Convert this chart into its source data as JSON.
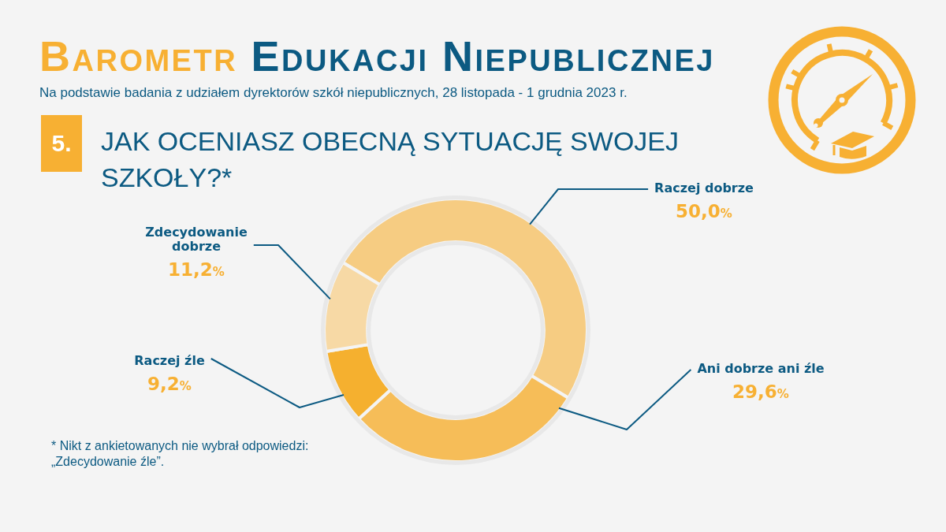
{
  "chart_data": {
    "type": "donut",
    "title": "Barometr Edukacji Niepublicznej",
    "subtitle": "Na podstawie badania z udziałem dyrektorów szkół niepublicznych, 28 listopada - 1 grudnia 2023 r.",
    "categories": [
      "Raczej dobrze",
      "Ani dobrze ani źle",
      "Raczej źle",
      "Zdecydowanie dobrze"
    ],
    "values": [
      50.0,
      29.6,
      9.2,
      11.2
    ],
    "colors": [
      "#f6cc82",
      "#f6bd58",
      "#f5b02f",
      "#f7d9a5"
    ],
    "value_labels": [
      "50,0%",
      "29,6%",
      "9,2%",
      "11,2%"
    ],
    "annotations": [
      "5.",
      "JAK OCENIASZ OBECNĄ SYTUACJĘ SWOJEJ SZKOŁY?*",
      "* Nikt z ankietowanych nie wybrał odpowiedzi: „Zdecydowanie źle”."
    ]
  }
}
